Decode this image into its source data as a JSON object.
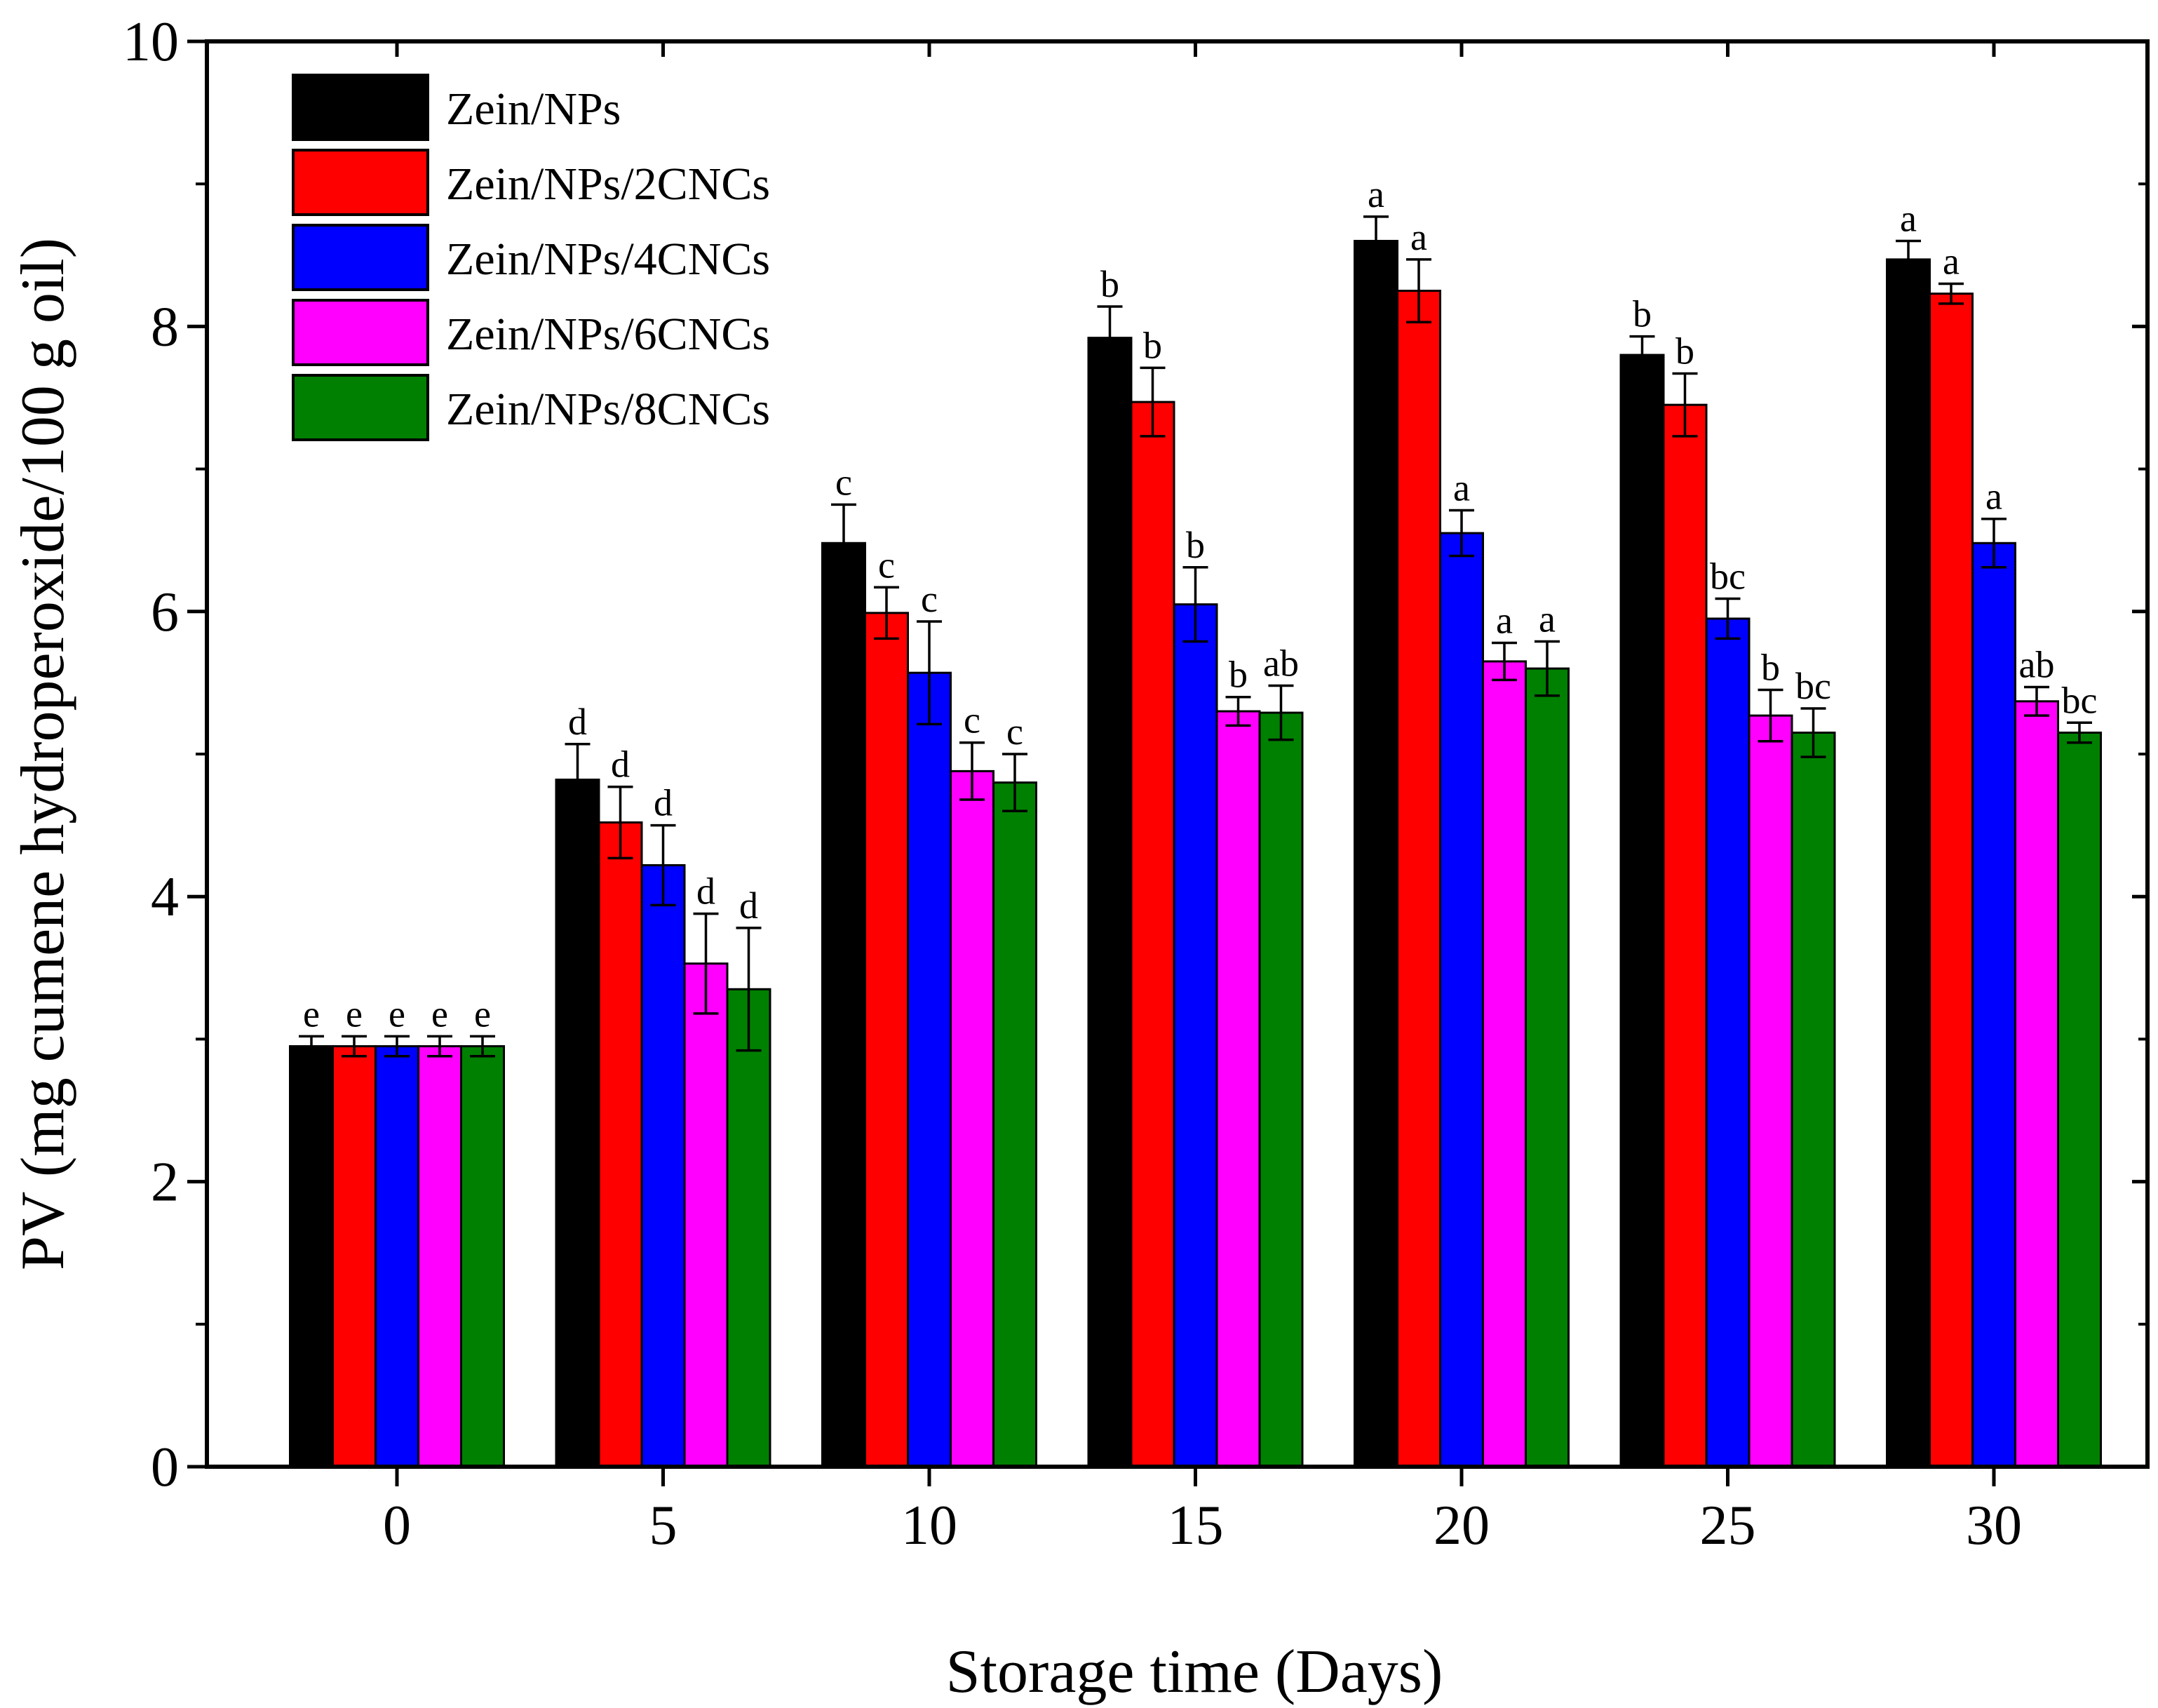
{
  "chart_data": {
    "type": "bar",
    "xlabel": "Storage time (Days)",
    "ylabel": "PV (mg cumene hydroperoxide/100 g oil)",
    "ylim": [
      0,
      10
    ],
    "yticks": [
      "0",
      "2",
      "4",
      "6",
      "8",
      "10"
    ],
    "categories": [
      "0",
      "5",
      "10",
      "15",
      "20",
      "25",
      "30"
    ],
    "legend_position": "top-left",
    "series": [
      {
        "name": "Zein/NPs",
        "color": "#000000",
        "values": [
          2.95,
          4.82,
          6.48,
          7.92,
          8.6,
          7.8,
          8.47
        ],
        "errors": [
          0.07,
          0.25,
          0.27,
          0.22,
          0.17,
          0.13,
          0.13
        ],
        "labels": [
          "e",
          "d",
          "c",
          "b",
          "a",
          "b",
          "a"
        ]
      },
      {
        "name": "Zein/NPs/2CNCs",
        "color": "#ff0000",
        "values": [
          2.95,
          4.52,
          5.99,
          7.47,
          8.25,
          7.45,
          8.23
        ],
        "errors": [
          0.07,
          0.25,
          0.18,
          0.24,
          0.22,
          0.22,
          0.07
        ],
        "labels": [
          "e",
          "d",
          "c",
          "b",
          "a",
          "b",
          "a"
        ]
      },
      {
        "name": "Zein/NPs/4CNCs",
        "color": "#0000ff",
        "values": [
          2.95,
          4.22,
          5.57,
          6.05,
          6.55,
          5.95,
          6.48
        ],
        "errors": [
          0.07,
          0.28,
          0.36,
          0.26,
          0.16,
          0.14,
          0.17
        ],
        "labels": [
          "e",
          "d",
          "c",
          "b",
          "a",
          "bc",
          "a"
        ]
      },
      {
        "name": "Zein/NPs/6CNCs",
        "color": "#ff00ff",
        "values": [
          2.95,
          3.53,
          4.88,
          5.3,
          5.65,
          5.27,
          5.37
        ],
        "errors": [
          0.07,
          0.35,
          0.2,
          0.1,
          0.13,
          0.18,
          0.1
        ],
        "labels": [
          "e",
          "d",
          "c",
          "b",
          "a",
          "b",
          "ab"
        ]
      },
      {
        "name": "Zein/NPs/8CNCs",
        "color": "#008000",
        "values": [
          2.95,
          3.35,
          4.8,
          5.29,
          5.6,
          5.15,
          5.15
        ],
        "errors": [
          0.07,
          0.43,
          0.2,
          0.19,
          0.19,
          0.17,
          0.07
        ],
        "labels": [
          "e",
          "d",
          "c",
          "ab",
          "a",
          "bc",
          "bc"
        ]
      }
    ]
  }
}
